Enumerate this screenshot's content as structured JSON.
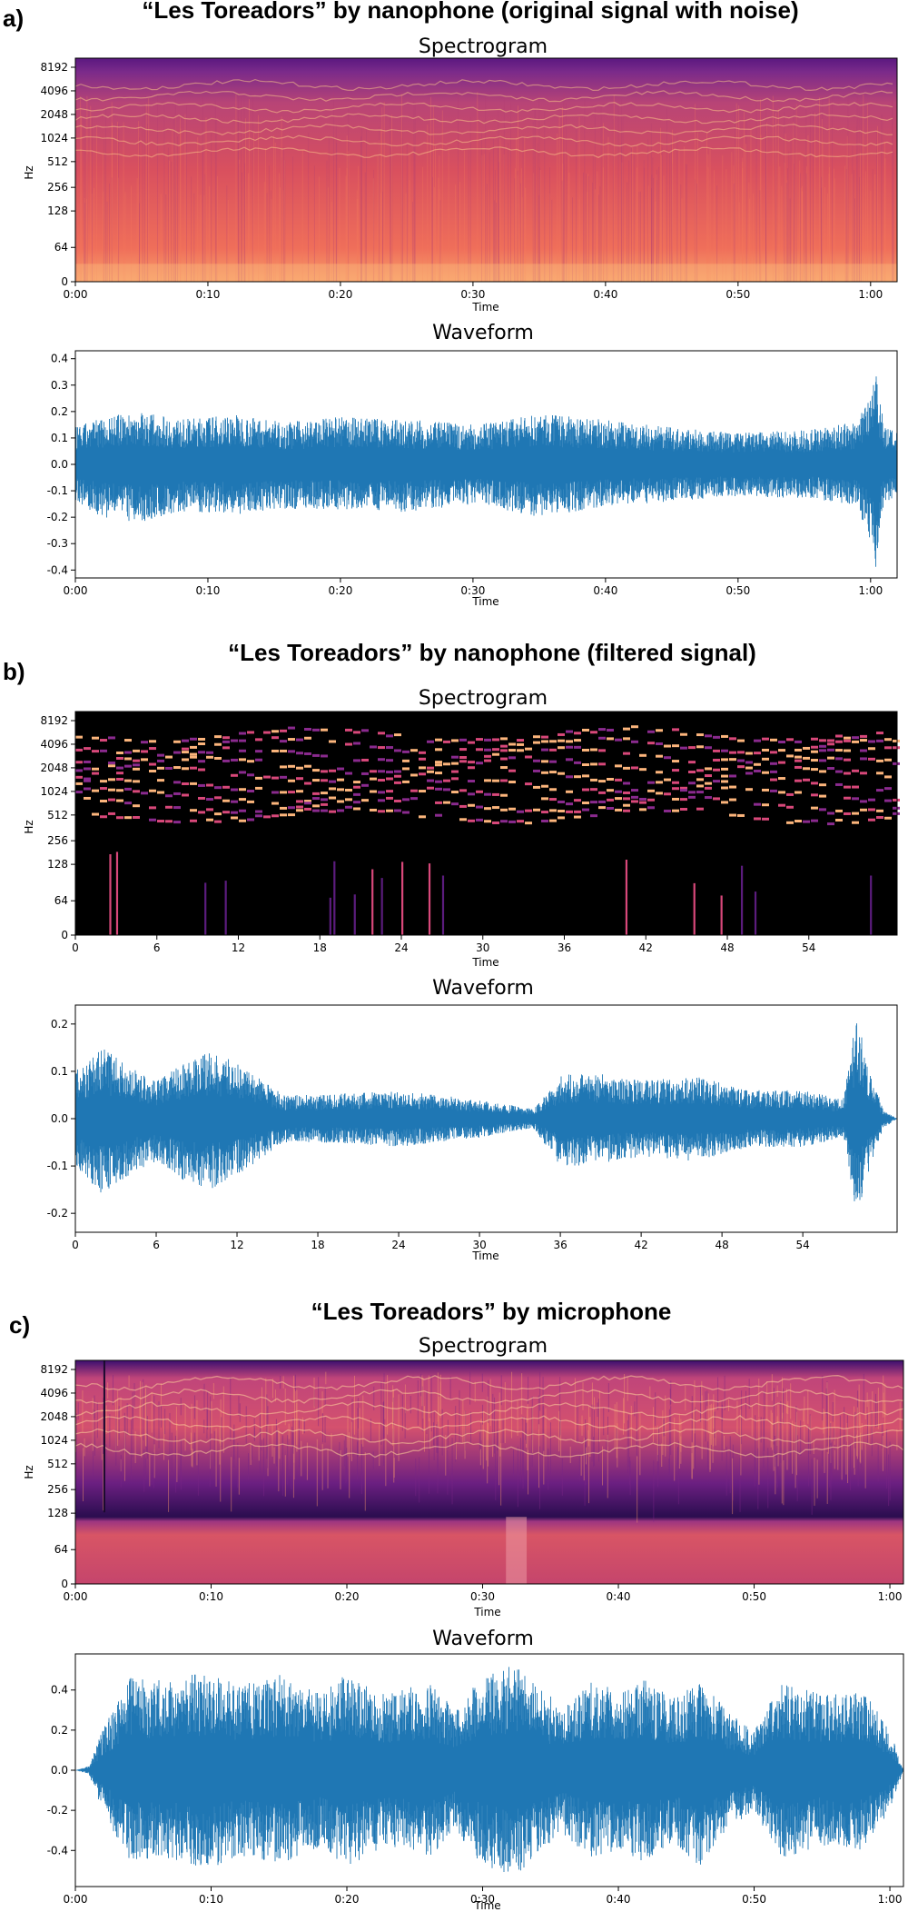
{
  "figure": {
    "panels": [
      {
        "label": "a)",
        "title": "“Les Toreadors” by nanophone (original signal with noise)",
        "spectrogram": {
          "title": "Spectrogram",
          "xlabel": "Time",
          "ylabel": "Hz",
          "x_ticks": [
            "0:00",
            "0:10",
            "0:20",
            "0:30",
            "0:40",
            "0:50",
            "1:00"
          ],
          "y_ticks": [
            "0",
            "64",
            "128",
            "256",
            "512",
            "1024",
            "2048",
            "4096",
            "8192"
          ],
          "style": "noisy"
        },
        "waveform": {
          "title": "Waveform",
          "xlabel": "Time",
          "x_ticks": [
            "0:00",
            "0:10",
            "0:20",
            "0:30",
            "0:40",
            "0:50",
            "1:00"
          ],
          "y_ticks": [
            "0.4",
            "0.3",
            "0.2",
            "0.1",
            "0.0",
            "-0.1",
            "-0.2",
            "-0.3",
            "-0.4"
          ]
        }
      },
      {
        "label": "b)",
        "title": "“Les Toreadors” by nanophone (filtered signal)",
        "spectrogram": {
          "title": "Spectrogram",
          "xlabel": "Time",
          "ylabel": "Hz",
          "x_ticks": [
            "0",
            "6",
            "12",
            "18",
            "24",
            "30",
            "36",
            "42",
            "48",
            "54"
          ],
          "y_ticks": [
            "0",
            "64",
            "128",
            "256",
            "512",
            "1024",
            "2048",
            "4096",
            "8192"
          ],
          "style": "filtered"
        },
        "waveform": {
          "title": "Waveform",
          "xlabel": "Time",
          "x_ticks": [
            "0",
            "6",
            "12",
            "18",
            "24",
            "30",
            "36",
            "42",
            "48",
            "54"
          ],
          "y_ticks": [
            "0.2",
            "0.1",
            "0.0",
            "-0.1",
            "-0.2"
          ]
        }
      },
      {
        "label": "c)",
        "title": "“Les Toreadors” by microphone",
        "spectrogram": {
          "title": "Spectrogram",
          "xlabel": "Time",
          "ylabel": "Hz",
          "x_ticks": [
            "0:00",
            "0:10",
            "0:20",
            "0:30",
            "0:40",
            "0:50",
            "1:00"
          ],
          "y_ticks": [
            "0",
            "64",
            "128",
            "256",
            "512",
            "1024",
            "2048",
            "4096",
            "8192"
          ],
          "style": "microphone"
        },
        "waveform": {
          "title": "Waveform",
          "xlabel": "Time",
          "x_ticks": [
            "0:00",
            "0:10",
            "0:20",
            "0:30",
            "0:40",
            "0:50",
            "1:00"
          ],
          "y_ticks": [
            "0.4",
            "0.2",
            "0.0",
            "-0.2",
            "-0.4"
          ]
        }
      }
    ]
  },
  "chart_data": [
    {
      "type": "heatmap",
      "title": "Spectrogram",
      "xlabel": "Time",
      "ylabel": "Hz",
      "xlim_seconds": [
        0,
        62
      ],
      "y_scale": "log (0–8192 Hz)",
      "colormap": "magma"
    },
    {
      "type": "line",
      "title": "Waveform",
      "xlabel": "Time",
      "xlim_seconds": [
        0,
        62
      ],
      "ylim": [
        -0.43,
        0.43
      ],
      "color": "#1f77b4",
      "envelope": {
        "x": [
          0,
          2,
          5,
          8,
          12,
          16,
          20,
          25,
          30,
          35,
          40,
          45,
          50,
          55,
          59,
          60,
          60.4,
          61,
          62
        ],
        "upper": [
          0.14,
          0.18,
          0.2,
          0.17,
          0.19,
          0.16,
          0.18,
          0.17,
          0.15,
          0.19,
          0.17,
          0.14,
          0.12,
          0.13,
          0.16,
          0.3,
          0.4,
          0.15,
          0.12
        ],
        "lower": [
          -0.14,
          -0.2,
          -0.22,
          -0.18,
          -0.19,
          -0.17,
          -0.17,
          -0.18,
          -0.15,
          -0.2,
          -0.16,
          -0.14,
          -0.12,
          -0.13,
          -0.16,
          -0.3,
          -0.39,
          -0.15,
          -0.12
        ]
      }
    },
    {
      "type": "heatmap",
      "title": "Spectrogram",
      "xlabel": "Time",
      "ylabel": "Hz",
      "xlim_seconds": [
        0,
        60.5
      ],
      "y_scale": "log (0–8192 Hz)",
      "colormap": "magma"
    },
    {
      "type": "line",
      "title": "Waveform",
      "xlabel": "Time",
      "xlim_seconds": [
        0,
        61
      ],
      "ylim": [
        -0.24,
        0.24
      ],
      "color": "#1f77b4",
      "envelope": {
        "x": [
          0,
          2,
          4,
          6,
          8,
          10,
          12,
          14,
          15.5,
          18,
          24,
          30,
          34,
          36,
          38,
          42,
          46,
          50,
          54,
          57,
          58,
          59,
          60,
          61
        ],
        "upper": [
          0.1,
          0.15,
          0.11,
          0.08,
          0.12,
          0.14,
          0.12,
          0.08,
          0.05,
          0.05,
          0.06,
          0.04,
          0.02,
          0.09,
          0.1,
          0.08,
          0.09,
          0.06,
          0.06,
          0.04,
          0.22,
          0.1,
          0.02,
          0.0
        ],
        "lower": [
          -0.1,
          -0.16,
          -0.12,
          -0.09,
          -0.13,
          -0.15,
          -0.12,
          -0.08,
          -0.05,
          -0.05,
          -0.06,
          -0.04,
          -0.02,
          -0.1,
          -0.1,
          -0.08,
          -0.09,
          -0.06,
          -0.06,
          -0.04,
          -0.21,
          -0.1,
          -0.02,
          0.0
        ]
      }
    },
    {
      "type": "heatmap",
      "title": "Spectrogram",
      "xlabel": "Time",
      "ylabel": "Hz",
      "xlim_seconds": [
        0,
        61
      ],
      "y_scale": "log (0–8192 Hz)",
      "colormap": "magma"
    },
    {
      "type": "line",
      "title": "Waveform",
      "xlabel": "Time",
      "xlim_seconds": [
        0,
        61
      ],
      "ylim": [
        -0.58,
        0.58
      ],
      "color": "#1f77b4",
      "envelope": {
        "x": [
          0,
          1,
          2,
          4,
          7,
          10,
          12,
          15,
          18,
          20,
          23,
          26,
          28,
          30,
          31,
          32,
          33,
          34,
          36,
          38,
          40,
          42,
          44,
          46,
          48,
          50,
          52,
          55,
          58,
          60,
          61
        ],
        "upper": [
          0.0,
          0.02,
          0.2,
          0.46,
          0.45,
          0.5,
          0.42,
          0.48,
          0.38,
          0.48,
          0.38,
          0.44,
          0.3,
          0.48,
          0.5,
          0.52,
          0.5,
          0.42,
          0.32,
          0.44,
          0.4,
          0.46,
          0.36,
          0.45,
          0.3,
          0.2,
          0.44,
          0.38,
          0.4,
          0.2,
          0.0
        ],
        "lower": [
          0.0,
          -0.02,
          -0.2,
          -0.46,
          -0.45,
          -0.5,
          -0.42,
          -0.48,
          -0.38,
          -0.48,
          -0.38,
          -0.44,
          -0.3,
          -0.48,
          -0.5,
          -0.53,
          -0.5,
          -0.42,
          -0.32,
          -0.44,
          -0.4,
          -0.46,
          -0.36,
          -0.48,
          -0.3,
          -0.2,
          -0.44,
          -0.38,
          -0.4,
          -0.2,
          0.0
        ]
      }
    }
  ]
}
